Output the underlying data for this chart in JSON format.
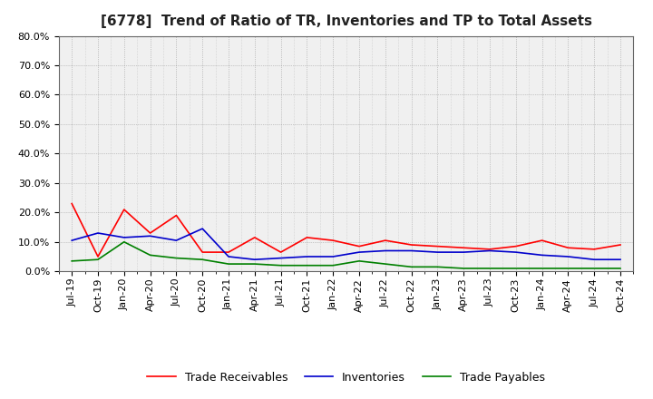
{
  "title": "[6778]  Trend of Ratio of TR, Inventories and TP to Total Assets",
  "labels": [
    "Jul-19",
    "Oct-19",
    "Jan-20",
    "Apr-20",
    "Jul-20",
    "Oct-20",
    "Jan-21",
    "Apr-21",
    "Jul-21",
    "Oct-21",
    "Jan-22",
    "Apr-22",
    "Jul-22",
    "Oct-22",
    "Jan-23",
    "Apr-23",
    "Jul-23",
    "Oct-23",
    "Jan-24",
    "Apr-24",
    "Jul-24",
    "Oct-24"
  ],
  "trade_receivables": [
    0.23,
    0.05,
    0.21,
    0.13,
    0.19,
    0.065,
    0.065,
    0.115,
    0.065,
    0.115,
    0.105,
    0.085,
    0.105,
    0.09,
    0.085,
    0.08,
    0.075,
    0.085,
    0.105,
    0.08,
    0.075,
    0.09
  ],
  "inventories": [
    0.105,
    0.13,
    0.115,
    0.12,
    0.105,
    0.145,
    0.05,
    0.04,
    0.045,
    0.05,
    0.05,
    0.065,
    0.07,
    0.07,
    0.065,
    0.065,
    0.07,
    0.065,
    0.055,
    0.05,
    0.04,
    0.04
  ],
  "trade_payables": [
    0.035,
    0.04,
    0.1,
    0.055,
    0.045,
    0.04,
    0.025,
    0.025,
    0.02,
    0.02,
    0.02,
    0.035,
    0.025,
    0.015,
    0.015,
    0.01,
    0.01,
    0.01,
    0.01,
    0.01,
    0.01,
    0.01
  ],
  "tr_color": "#ff0000",
  "inv_color": "#0000cc",
  "tp_color": "#008000",
  "ylim": [
    0.0,
    0.8
  ],
  "yticks": [
    0.0,
    0.1,
    0.2,
    0.3,
    0.4,
    0.5,
    0.6,
    0.7,
    0.8
  ],
  "outer_bg": "#ffffff",
  "plot_bg": "#f0f0f0",
  "grid_color": "#888888",
  "title_fontsize": 11,
  "tick_fontsize": 8,
  "legend_labels": [
    "Trade Receivables",
    "Inventories",
    "Trade Payables"
  ]
}
